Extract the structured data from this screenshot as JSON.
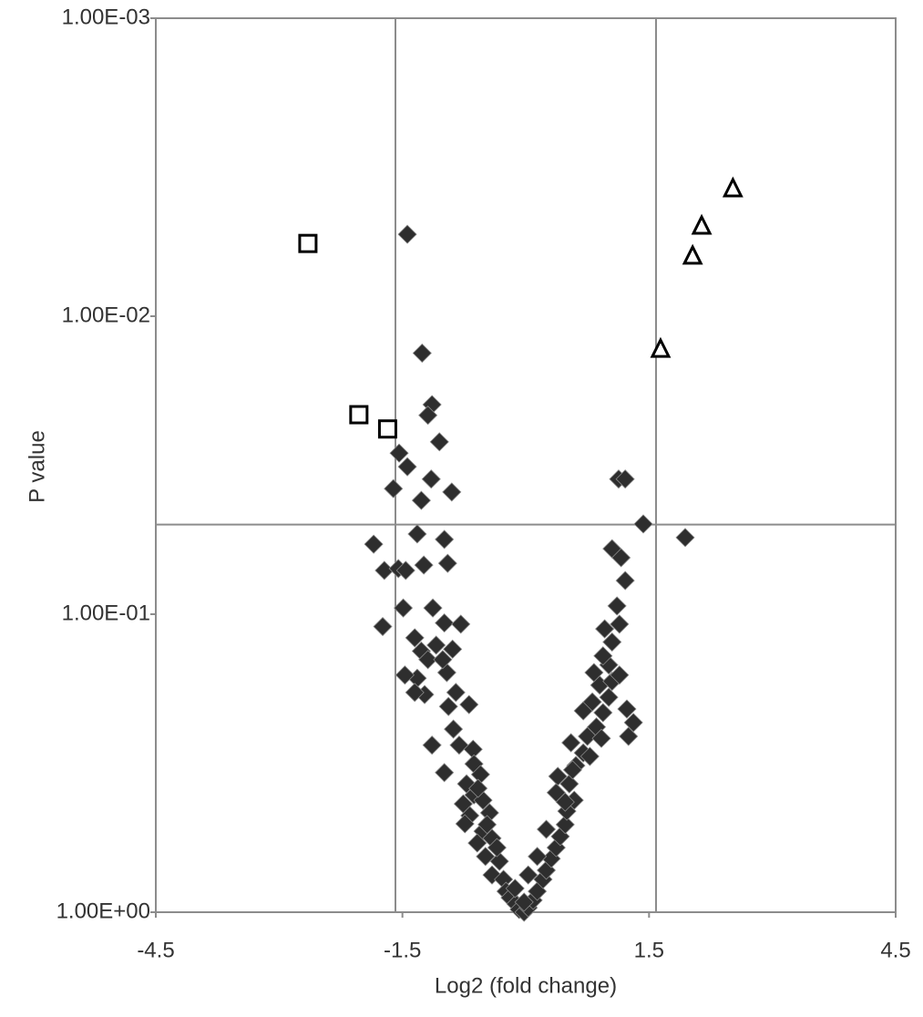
{
  "chart_data": {
    "type": "scatter",
    "xlabel": "Log2 (fold change)",
    "ylabel": "P value",
    "xlim": [
      -4.5,
      4.5
    ],
    "xticks": [
      -4.5,
      -1.5,
      1.5,
      4.5
    ],
    "ylim": [
      1,
      0.001
    ],
    "log_y": true,
    "yticks": [
      {
        "value": 1,
        "label": "1.00E+00"
      },
      {
        "value": 0.1,
        "label": "1.00E-01"
      },
      {
        "value": 0.01,
        "label": "1.00E-02"
      },
      {
        "value": 0.001,
        "label": "1.00E-03"
      }
    ],
    "ref_lines": {
      "x": [
        -1.585,
        1.585
      ],
      "y": [
        0.05
      ]
    },
    "series": [
      {
        "marker": "diamond",
        "color": "#2e2e2e",
        "x": [
          -1.44,
          -1.26,
          -1.14,
          -1.19,
          -1.05,
          -1.54,
          -1.44,
          -1.61,
          -1.15,
          -1.27,
          -0.9,
          -1.85,
          -1.32,
          -0.99,
          -1.72,
          -1.55,
          -1.46,
          -1.24,
          -0.95,
          -1.49,
          -1.13,
          -1.74,
          -0.99,
          -1.35,
          -1.27,
          -0.79,
          -1.09,
          -1.19,
          -0.89,
          -0.96,
          -1.32,
          -1.23,
          -0.69,
          -0.94,
          -1.14,
          -0.81,
          -0.64,
          -0.63,
          -0.55,
          -0.99,
          -0.72,
          -0.63,
          -0.76,
          -0.52,
          -0.68,
          -0.44,
          -0.74,
          -0.52,
          -0.59,
          -0.41,
          -0.49,
          -0.32,
          -0.41,
          -0.27,
          -0.24,
          -0.19,
          -0.12,
          -0.08,
          -0.02,
          0.03,
          0.09,
          0.14,
          0.21,
          0.25,
          0.31,
          0.37,
          0.42,
          0.48,
          0.5,
          0.59,
          0.39,
          0.53,
          0.61,
          0.7,
          0.55,
          0.75,
          0.86,
          0.94,
          0.7,
          0.81,
          1.01,
          0.9,
          1.05,
          1.14,
          1.01,
          0.83,
          0.94,
          1.05,
          0.96,
          1.14,
          1.11,
          1.21,
          1.05,
          1.16,
          1.13,
          1.21,
          1.43,
          1.94,
          1.23,
          1.25,
          1.31,
          0.78,
          0.48,
          0.25,
          0.03,
          -0.13,
          -0.35,
          -0.58,
          -0.47,
          -0.88,
          -1.01,
          -1.47,
          -1.35,
          -0.85,
          0.92,
          0.57,
          0.37,
          0.14,
          -0.02
        ],
        "values": [
          0.00531,
          0.0133,
          0.0198,
          0.0215,
          0.0264,
          0.0288,
          0.032,
          0.0379,
          0.0352,
          0.0415,
          0.0389,
          0.0582,
          0.0538,
          0.0561,
          0.0713,
          0.0703,
          0.0713,
          0.0684,
          0.0675,
          0.0953,
          0.0953,
          0.11,
          0.107,
          0.12,
          0.133,
          0.108,
          0.127,
          0.142,
          0.131,
          0.157,
          0.164,
          0.186,
          0.201,
          0.204,
          0.275,
          0.275,
          0.284,
          0.318,
          0.345,
          0.34,
          0.371,
          0.404,
          0.433,
          0.421,
          0.474,
          0.464,
          0.505,
          0.535,
          0.586,
          0.565,
          0.65,
          0.675,
          0.75,
          0.776,
          0.851,
          0.894,
          0.938,
          0.979,
          1,
          0.966,
          0.912,
          0.851,
          0.776,
          0.723,
          0.661,
          0.607,
          0.557,
          0.508,
          0.458,
          0.421,
          0.35,
          0.371,
          0.322,
          0.292,
          0.27,
          0.257,
          0.239,
          0.214,
          0.211,
          0.197,
          0.19,
          0.173,
          0.168,
          0.16,
          0.148,
          0.157,
          0.138,
          0.124,
          0.112,
          0.108,
          0.0938,
          0.0771,
          0.0603,
          0.0646,
          0.0352,
          0.0352,
          0.0498,
          0.0553,
          0.208,
          0.257,
          0.231,
          0.3,
          0.427,
          0.527,
          0.75,
          0.832,
          0.607,
          0.384,
          0.508,
          0.243,
          0.142,
          0.16,
          0.183,
          0.183,
          0.261,
          0.333,
          0.397,
          0.65,
          0.925
        ]
      },
      {
        "marker": "square",
        "color": "#000000",
        "x": [
          -2.65,
          -2.03,
          -1.68
        ],
        "values": [
          0.0057,
          0.0214,
          0.0239
        ]
      },
      {
        "marker": "triangle",
        "color": "#000000",
        "x": [
          2.52,
          2.14,
          2.03,
          1.64
        ],
        "values": [
          0.00373,
          0.00498,
          0.00628,
          0.0129
        ]
      }
    ]
  }
}
